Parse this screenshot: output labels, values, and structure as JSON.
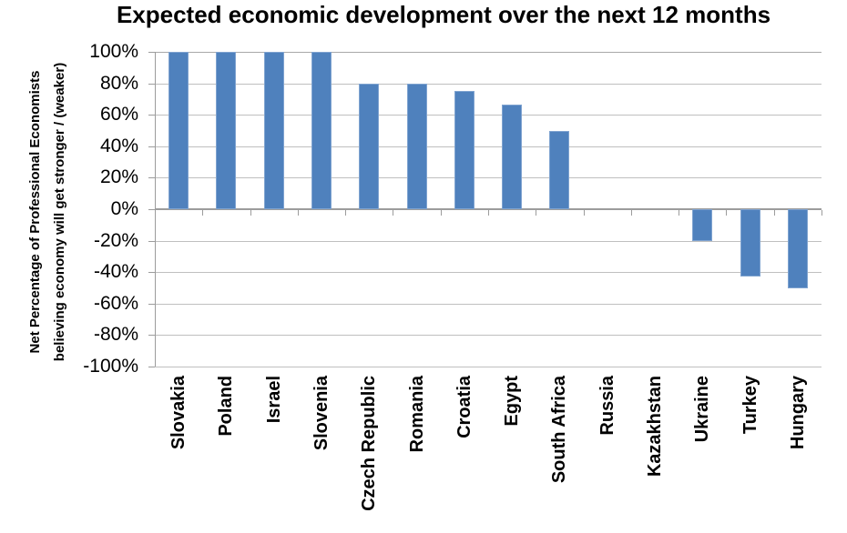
{
  "chart_data": {
    "type": "bar",
    "title": "Expected economic development over the next 12 months",
    "ylabel": "Net Percentage of Professional Economists believing economy will get stronger / (weaker)",
    "ylabel_lines": [
      "Net Percentage of Professional Economists",
      "believing economy will get stronger / (weaker)"
    ],
    "xlabel": "",
    "categories": [
      "Slovakia",
      "Poland",
      "Israel",
      "Slovenia",
      "Czech Republic",
      "Romania",
      "Croatia",
      "Egypt",
      "South Africa",
      "Russia",
      "Kazakhstan",
      "Ukraine",
      "Turkey",
      "Hungary"
    ],
    "values": [
      100,
      100,
      100,
      100,
      80,
      80,
      75,
      66.7,
      50,
      0,
      0,
      -20,
      -43,
      -50
    ],
    "ylim": [
      -100,
      100
    ],
    "ytick_step": 20,
    "ytick_labels": [
      "100%",
      "80%",
      "60%",
      "40%",
      "20%",
      "0%",
      "-20%",
      "-40%",
      "-60%",
      "-80%",
      "-100%"
    ],
    "grid": true,
    "legend": "none",
    "colors": {
      "bar_fill": "#4F81BD",
      "bar_edge": "#7FA3D0",
      "gridline": "#BFBFBF",
      "gridline_top": "#A8A8A8",
      "axis_line": "#9C9C9C",
      "text": "#000000",
      "background": "#FFFFFF"
    }
  }
}
